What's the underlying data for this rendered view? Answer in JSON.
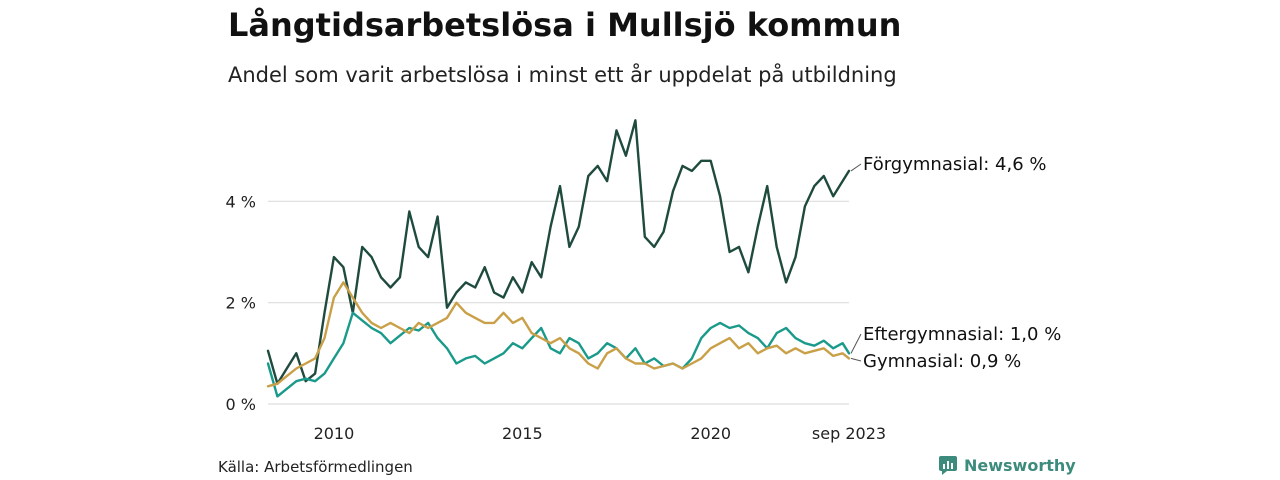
{
  "title": "Långtidsarbetslösa i Mullsjö kommun",
  "subtitle": "Andel som varit arbetslösa i minst ett år uppdelat på utbildning",
  "source": "Källa: Arbetsförmedlingen",
  "brand": "Newsworthy",
  "colors": {
    "forgymnasial": "#1f4b3e",
    "eftergymnasial": "#1a9a8a",
    "gymnasial": "#c9a048",
    "grid": "#dddddd",
    "brand": "#3d8b7d"
  },
  "chart_data": {
    "type": "line",
    "title": "Långtidsarbetslösa i Mullsjö kommun",
    "xlabel": "",
    "ylabel": "",
    "x_range": [
      2008.25,
      2023.67
    ],
    "ylim": [
      0,
      6
    ],
    "y_ticks": [
      0,
      2,
      4
    ],
    "y_tick_labels": [
      "0 %",
      "2 %",
      "4 %"
    ],
    "x_ticks": [
      2010,
      2015,
      2020,
      2023.67
    ],
    "x_tick_labels": [
      "2010",
      "2015",
      "2020",
      "sep 2023"
    ],
    "series": [
      {
        "name": "Förgymnasial",
        "end_label": "Förgymnasial: 4,6 %",
        "color": "#1f4b3e",
        "x": [
          2008.25,
          2008.5,
          2008.75,
          2009.0,
          2009.25,
          2009.5,
          2009.75,
          2010.0,
          2010.25,
          2010.5,
          2010.75,
          2011.0,
          2011.25,
          2011.5,
          2011.75,
          2012.0,
          2012.25,
          2012.5,
          2012.75,
          2013.0,
          2013.25,
          2013.5,
          2013.75,
          2014.0,
          2014.25,
          2014.5,
          2014.75,
          2015.0,
          2015.25,
          2015.5,
          2015.75,
          2016.0,
          2016.25,
          2016.5,
          2016.75,
          2017.0,
          2017.25,
          2017.5,
          2017.75,
          2018.0,
          2018.25,
          2018.5,
          2018.75,
          2019.0,
          2019.25,
          2019.5,
          2019.75,
          2020.0,
          2020.25,
          2020.5,
          2020.75,
          2021.0,
          2021.25,
          2021.5,
          2021.75,
          2022.0,
          2022.25,
          2022.5,
          2022.75,
          2023.0,
          2023.25,
          2023.5,
          2023.67
        ],
        "values": [
          1.05,
          0.4,
          0.7,
          1.0,
          0.45,
          0.6,
          1.8,
          2.9,
          2.7,
          1.8,
          3.1,
          2.9,
          2.5,
          2.3,
          2.5,
          3.8,
          3.1,
          2.9,
          3.7,
          1.9,
          2.2,
          2.4,
          2.3,
          2.7,
          2.2,
          2.1,
          2.5,
          2.2,
          2.8,
          2.5,
          3.5,
          4.3,
          3.1,
          3.5,
          4.5,
          4.7,
          4.4,
          5.4,
          4.9,
          5.6,
          3.3,
          3.1,
          3.4,
          4.2,
          4.7,
          4.6,
          4.8,
          4.8,
          4.1,
          3.0,
          3.1,
          2.6,
          3.5,
          4.3,
          3.1,
          2.4,
          2.9,
          3.9,
          4.3,
          4.5,
          4.1,
          4.4,
          4.6
        ]
      },
      {
        "name": "Eftergymnasial",
        "end_label": "Eftergymnasial: 1,0 %",
        "color": "#1a9a8a",
        "x": [
          2008.25,
          2008.5,
          2008.75,
          2009.0,
          2009.25,
          2009.5,
          2009.75,
          2010.0,
          2010.25,
          2010.5,
          2010.75,
          2011.0,
          2011.25,
          2011.5,
          2011.75,
          2012.0,
          2012.25,
          2012.5,
          2012.75,
          2013.0,
          2013.25,
          2013.5,
          2013.75,
          2014.0,
          2014.25,
          2014.5,
          2014.75,
          2015.0,
          2015.25,
          2015.5,
          2015.75,
          2016.0,
          2016.25,
          2016.5,
          2016.75,
          2017.0,
          2017.25,
          2017.5,
          2017.75,
          2018.0,
          2018.25,
          2018.5,
          2018.75,
          2019.0,
          2019.25,
          2019.5,
          2019.75,
          2020.0,
          2020.25,
          2020.5,
          2020.75,
          2021.0,
          2021.25,
          2021.5,
          2021.75,
          2022.0,
          2022.25,
          2022.5,
          2022.75,
          2023.0,
          2023.25,
          2023.5,
          2023.67
        ],
        "values": [
          0.8,
          0.15,
          0.3,
          0.45,
          0.5,
          0.45,
          0.6,
          0.9,
          1.2,
          1.8,
          1.65,
          1.5,
          1.4,
          1.2,
          1.35,
          1.5,
          1.45,
          1.6,
          1.3,
          1.1,
          0.8,
          0.9,
          0.95,
          0.8,
          0.9,
          1.0,
          1.2,
          1.1,
          1.3,
          1.5,
          1.1,
          1.0,
          1.3,
          1.2,
          0.9,
          1.0,
          1.2,
          1.1,
          0.9,
          1.1,
          0.8,
          0.9,
          0.75,
          0.8,
          0.7,
          0.9,
          1.3,
          1.5,
          1.6,
          1.5,
          1.55,
          1.4,
          1.3,
          1.1,
          1.4,
          1.5,
          1.3,
          1.2,
          1.15,
          1.25,
          1.1,
          1.2,
          1.0
        ]
      },
      {
        "name": "Gymnasial",
        "end_label": "Gymnasial: 0,9 %",
        "color": "#c9a048",
        "x": [
          2008.25,
          2008.5,
          2008.75,
          2009.0,
          2009.25,
          2009.5,
          2009.75,
          2010.0,
          2010.25,
          2010.5,
          2010.75,
          2011.0,
          2011.25,
          2011.5,
          2011.75,
          2012.0,
          2012.25,
          2012.5,
          2012.75,
          2013.0,
          2013.25,
          2013.5,
          2013.75,
          2014.0,
          2014.25,
          2014.5,
          2014.75,
          2015.0,
          2015.25,
          2015.5,
          2015.75,
          2016.0,
          2016.25,
          2016.5,
          2016.75,
          2017.0,
          2017.25,
          2017.5,
          2017.75,
          2018.0,
          2018.25,
          2018.5,
          2018.75,
          2019.0,
          2019.25,
          2019.5,
          2019.75,
          2020.0,
          2020.25,
          2020.5,
          2020.75,
          2021.0,
          2021.25,
          2021.5,
          2021.75,
          2022.0,
          2022.25,
          2022.5,
          2022.75,
          2023.0,
          2023.25,
          2023.5,
          2023.67
        ],
        "values": [
          0.35,
          0.4,
          0.55,
          0.7,
          0.8,
          0.9,
          1.3,
          2.1,
          2.4,
          2.1,
          1.8,
          1.6,
          1.5,
          1.6,
          1.5,
          1.4,
          1.6,
          1.5,
          1.6,
          1.7,
          2.0,
          1.8,
          1.7,
          1.6,
          1.6,
          1.8,
          1.6,
          1.7,
          1.4,
          1.3,
          1.2,
          1.3,
          1.1,
          1.0,
          0.8,
          0.7,
          1.0,
          1.1,
          0.9,
          0.8,
          0.8,
          0.7,
          0.75,
          0.8,
          0.7,
          0.8,
          0.9,
          1.1,
          1.2,
          1.3,
          1.1,
          1.2,
          1.0,
          1.1,
          1.15,
          1.0,
          1.1,
          1.0,
          1.05,
          1.1,
          0.95,
          1.0,
          0.9
        ]
      }
    ]
  }
}
